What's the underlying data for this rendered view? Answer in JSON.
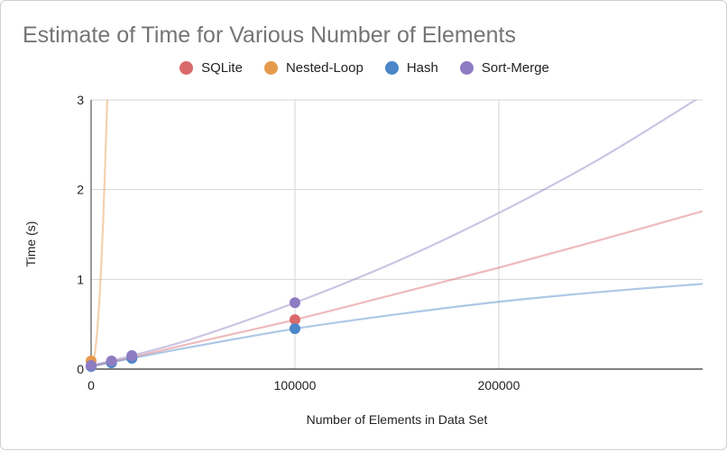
{
  "chart_data": {
    "type": "scatter",
    "title": "Estimate of Time for Various Number of Elements",
    "xlabel": "Number of Elements in Data Set",
    "ylabel": "Time (s)",
    "xlim": [
      0,
      300000
    ],
    "ylim": [
      0,
      3
    ],
    "x_ticks": [
      "0",
      "100000",
      "200000"
    ],
    "x_tick_values": [
      0,
      100000,
      200000
    ],
    "y_ticks": [
      "0",
      "1",
      "2",
      "3"
    ],
    "y_tick_values": [
      0,
      1,
      2,
      3
    ],
    "grid": true,
    "legend_position": "top",
    "series": [
      {
        "name": "SQLite",
        "color": "#d9696b",
        "points": [
          [
            0,
            0.03
          ],
          [
            10000,
            0.08
          ],
          [
            20000,
            0.13
          ],
          [
            100000,
            0.55
          ]
        ],
        "trend": [
          [
            0,
            0.03
          ],
          [
            20000,
            0.13
          ],
          [
            50000,
            0.29
          ],
          [
            100000,
            0.55
          ],
          [
            150000,
            0.84
          ],
          [
            200000,
            1.13
          ],
          [
            250000,
            1.44
          ],
          [
            300000,
            1.76
          ]
        ]
      },
      {
        "name": "Nested-Loop",
        "color": "#e69a4c",
        "points": [
          [
            0,
            0.09
          ]
        ],
        "trend": [
          [
            0,
            0.05
          ],
          [
            2000,
            0.2
          ],
          [
            4000,
            0.75
          ],
          [
            6000,
            1.7
          ],
          [
            8000,
            3.05
          ]
        ]
      },
      {
        "name": "Hash",
        "color": "#4a86c8",
        "points": [
          [
            0,
            0.03
          ],
          [
            10000,
            0.07
          ],
          [
            20000,
            0.12
          ],
          [
            100000,
            0.45
          ]
        ],
        "trend": [
          [
            0,
            0.03
          ],
          [
            20000,
            0.12
          ],
          [
            50000,
            0.25
          ],
          [
            100000,
            0.45
          ],
          [
            150000,
            0.61
          ],
          [
            200000,
            0.75
          ],
          [
            250000,
            0.86
          ],
          [
            300000,
            0.95
          ]
        ]
      },
      {
        "name": "Sort-Merge",
        "color": "#8e7cc3",
        "points": [
          [
            0,
            0.04
          ],
          [
            10000,
            0.09
          ],
          [
            20000,
            0.15
          ],
          [
            100000,
            0.74
          ]
        ],
        "trend": [
          [
            0,
            0.04
          ],
          [
            20000,
            0.15
          ],
          [
            50000,
            0.34
          ],
          [
            100000,
            0.74
          ],
          [
            150000,
            1.2
          ],
          [
            200000,
            1.74
          ],
          [
            250000,
            2.35
          ],
          [
            300000,
            3.05
          ]
        ]
      }
    ]
  }
}
